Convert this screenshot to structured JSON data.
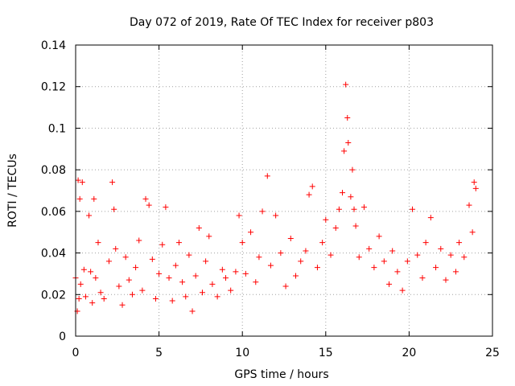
{
  "chart_data": {
    "type": "scatter",
    "title": "Day 072 of 2019, Rate Of TEC Index for receiver p803",
    "xlabel": "GPS time / hours",
    "ylabel": "ROTI / TECUs",
    "xlim": [
      0,
      25
    ],
    "ylim": [
      0,
      0.14
    ],
    "x_ticks": [
      0,
      5,
      10,
      15,
      20,
      25
    ],
    "x_tick_labels": [
      "0",
      "5",
      "10",
      "15",
      "20",
      "25"
    ],
    "y_ticks": [
      0,
      0.02,
      0.04,
      0.06,
      0.08,
      0.1,
      0.12,
      0.14
    ],
    "y_tick_labels": [
      "0",
      "0.02",
      "0.04",
      "0.06",
      "0.08",
      "0.1",
      "0.12",
      "0.14"
    ],
    "grid": true,
    "marker": "+",
    "series": [
      {
        "name": "ROTI",
        "color": "#ff0000",
        "x": [
          0.0,
          0.1,
          0.15,
          0.2,
          0.25,
          0.3,
          0.4,
          0.5,
          0.6,
          0.8,
          0.9,
          1.0,
          1.1,
          1.2,
          1.35,
          1.5,
          1.7,
          2.0,
          2.2,
          2.3,
          2.4,
          2.6,
          2.8,
          3.0,
          3.2,
          3.4,
          3.6,
          3.8,
          4.0,
          4.2,
          4.4,
          4.6,
          4.8,
          5.0,
          5.2,
          5.4,
          5.6,
          5.8,
          6.0,
          6.2,
          6.4,
          6.6,
          6.8,
          7.0,
          7.2,
          7.4,
          7.6,
          7.8,
          8.0,
          8.2,
          8.5,
          8.8,
          9.0,
          9.3,
          9.6,
          9.8,
          10.0,
          10.2,
          10.5,
          10.8,
          11.0,
          11.2,
          11.5,
          11.7,
          12.0,
          12.3,
          12.6,
          12.9,
          13.2,
          13.5,
          13.8,
          14.0,
          14.2,
          14.5,
          14.8,
          15.0,
          15.3,
          15.6,
          15.8,
          16.0,
          16.1,
          16.2,
          16.3,
          16.35,
          16.5,
          16.6,
          16.7,
          16.8,
          17.0,
          17.3,
          17.6,
          17.9,
          18.2,
          18.5,
          18.8,
          19.0,
          19.3,
          19.6,
          19.9,
          20.2,
          20.5,
          20.8,
          21.0,
          21.3,
          21.6,
          21.9,
          22.2,
          22.5,
          22.8,
          23.0,
          23.3,
          23.6,
          23.8,
          23.9,
          24.0
        ],
        "y": [
          0.028,
          0.012,
          0.075,
          0.018,
          0.066,
          0.025,
          0.074,
          0.032,
          0.019,
          0.058,
          0.031,
          0.016,
          0.066,
          0.028,
          0.045,
          0.021,
          0.018,
          0.036,
          0.074,
          0.061,
          0.042,
          0.024,
          0.015,
          0.038,
          0.027,
          0.02,
          0.033,
          0.046,
          0.022,
          0.066,
          0.063,
          0.037,
          0.018,
          0.03,
          0.044,
          0.062,
          0.028,
          0.017,
          0.034,
          0.045,
          0.026,
          0.019,
          0.039,
          0.012,
          0.029,
          0.052,
          0.021,
          0.036,
          0.048,
          0.025,
          0.019,
          0.032,
          0.028,
          0.022,
          0.031,
          0.058,
          0.045,
          0.03,
          0.05,
          0.026,
          0.038,
          0.06,
          0.077,
          0.034,
          0.058,
          0.04,
          0.024,
          0.047,
          0.029,
          0.036,
          0.041,
          0.068,
          0.072,
          0.033,
          0.045,
          0.056,
          0.039,
          0.052,
          0.061,
          0.069,
          0.089,
          0.121,
          0.105,
          0.093,
          0.067,
          0.08,
          0.061,
          0.053,
          0.038,
          0.062,
          0.042,
          0.033,
          0.048,
          0.036,
          0.025,
          0.041,
          0.031,
          0.022,
          0.036,
          0.061,
          0.039,
          0.028,
          0.045,
          0.057,
          0.033,
          0.042,
          0.027,
          0.039,
          0.031,
          0.045,
          0.038,
          0.063,
          0.05,
          0.074,
          0.071
        ]
      }
    ]
  }
}
